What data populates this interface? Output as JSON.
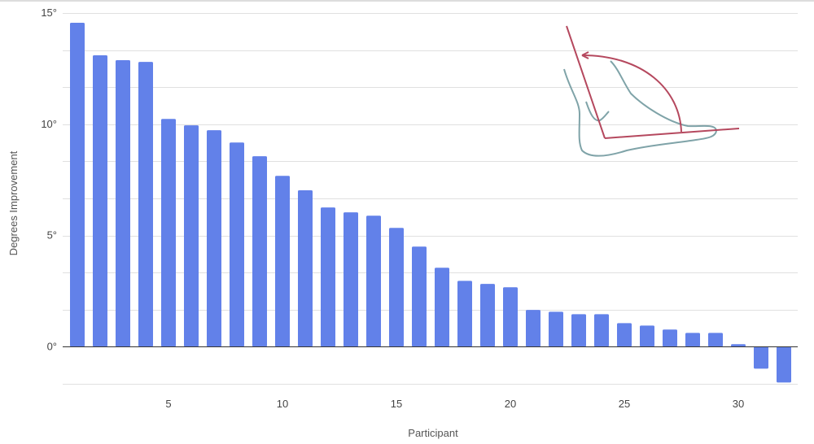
{
  "chart_data": {
    "type": "bar",
    "title": "",
    "xlabel": "Participant",
    "ylabel": "Degrees Improvement",
    "x": [
      1,
      2,
      3,
      4,
      5,
      6,
      7,
      8,
      9,
      10,
      11,
      12,
      13,
      14,
      15,
      16,
      17,
      18,
      19,
      20,
      21,
      22,
      23,
      24,
      25,
      26,
      27,
      28,
      29,
      30,
      31,
      32
    ],
    "values": [
      14.56,
      13.1,
      12.88,
      12.8,
      10.24,
      9.95,
      9.73,
      9.18,
      8.56,
      7.68,
      7.03,
      6.26,
      6.04,
      5.89,
      5.34,
      4.5,
      3.55,
      2.96,
      2.82,
      2.67,
      1.65,
      1.57,
      1.46,
      1.46,
      1.06,
      0.95,
      0.77,
      0.62,
      0.62,
      0.11,
      -0.99,
      -1.61
    ],
    "ylim": [
      -1.67,
      15
    ],
    "xlim": [
      0.5,
      32.5
    ],
    "yticks": [
      {
        "v": 0,
        "label": "0°"
      },
      {
        "v": 5,
        "label": "5°"
      },
      {
        "v": 10,
        "label": "10°"
      },
      {
        "v": 15,
        "label": "15°"
      }
    ],
    "xticks": [
      {
        "v": 5,
        "label": "5"
      },
      {
        "v": 10,
        "label": "10"
      },
      {
        "v": 15,
        "label": "15"
      },
      {
        "v": 20,
        "label": "20"
      },
      {
        "v": 25,
        "label": "25"
      },
      {
        "v": 30,
        "label": "30"
      }
    ],
    "minor_grid_step": 1.6667,
    "grid": true,
    "bar_color": "#6281e9"
  }
}
